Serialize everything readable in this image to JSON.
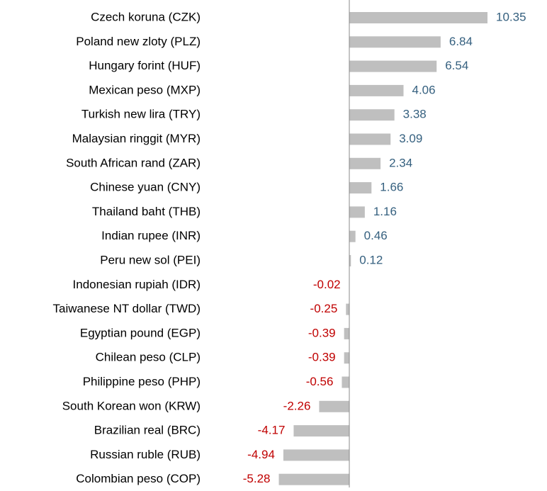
{
  "chart_data": {
    "type": "bar",
    "orientation": "horizontal",
    "categories": [
      "Czech koruna (CZK)",
      "Poland new zloty (PLZ)",
      "Hungary forint (HUF)",
      "Mexican peso (MXP)",
      "Turkish new lira (TRY)",
      "Malaysian ringgit (MYR)",
      "South African rand (ZAR)",
      "Chinese yuan (CNY)",
      "Thailand baht (THB)",
      "Indian rupee (INR)",
      "Peru new sol (PEI)",
      "Indonesian rupiah (IDR)",
      "Taiwanese NT dollar (TWD)",
      "Egyptian pound (EGP)",
      "Chilean peso (CLP)",
      "Philippine peso (PHP)",
      "South Korean won (KRW)",
      "Brazilian real (BRC)",
      "Russian ruble (RUB)",
      "Colombian peso (COP)"
    ],
    "values": [
      10.35,
      6.84,
      6.54,
      4.06,
      3.38,
      3.09,
      2.34,
      1.66,
      1.16,
      0.46,
      0.12,
      -0.02,
      -0.25,
      -0.39,
      -0.39,
      -0.56,
      -2.26,
      -4.17,
      -4.94,
      -5.28
    ],
    "color": "#bfbfbf",
    "positive_label_color": "#35607f",
    "negative_label_color": "#c00000"
  }
}
